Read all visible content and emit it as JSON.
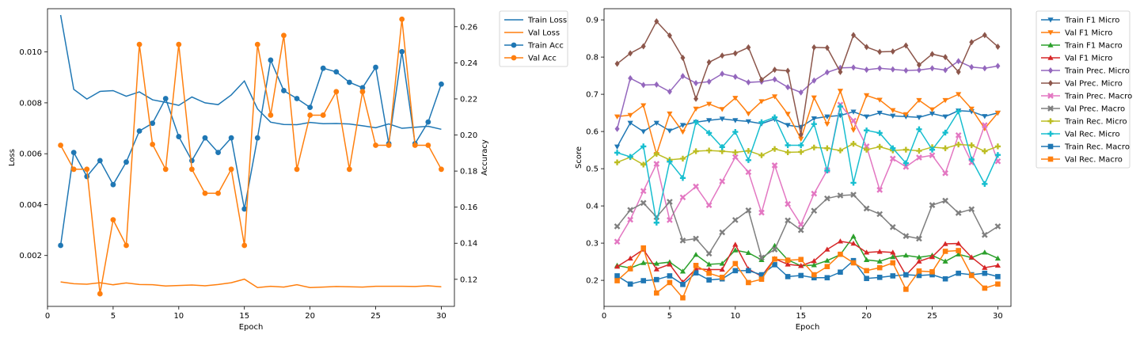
{
  "chart_data": [
    {
      "type": "line",
      "xlabel": "Epoch",
      "ylabel": "Loss",
      "y2label": "Accuracy",
      "x": [
        1,
        2,
        3,
        4,
        5,
        6,
        7,
        8,
        9,
        10,
        11,
        12,
        13,
        14,
        15,
        16,
        17,
        18,
        19,
        20,
        21,
        22,
        23,
        24,
        25,
        26,
        27,
        28,
        29,
        30
      ],
      "xlim": [
        0,
        31
      ],
      "ylim": [
        0,
        0.0117
      ],
      "y2lim": [
        0.105,
        0.27
      ],
      "xticks": [
        "0",
        "5",
        "10",
        "15",
        "20",
        "25",
        "30"
      ],
      "yticks": [
        "0.002",
        "0.004",
        "0.006",
        "0.008",
        "0.010"
      ],
      "y2ticks": [
        "0.12",
        "0.14",
        "0.16",
        "0.18",
        "0.20",
        "0.22",
        "0.24",
        "0.26"
      ],
      "grid": false,
      "legend_position": "outside-top-right",
      "series": [
        {
          "name": "Train Loss",
          "axis": "left",
          "color": "#1f77b4",
          "marker": "none",
          "values": [
            0.01145,
            0.00853,
            0.00815,
            0.00845,
            0.00848,
            0.00826,
            0.00843,
            0.00812,
            0.00802,
            0.0079,
            0.00823,
            0.008,
            0.00793,
            0.00831,
            0.00886,
            0.00776,
            0.00724,
            0.00715,
            0.00714,
            0.00723,
            0.00718,
            0.00719,
            0.00717,
            0.0071,
            0.00702,
            0.00717,
            0.007,
            0.00704,
            0.00708,
            0.00696
          ]
        },
        {
          "name": "Val Loss",
          "axis": "left",
          "color": "#ff7f0e",
          "marker": "none",
          "values": [
            0.00096,
            0.00089,
            0.00087,
            0.00093,
            0.00085,
            0.00092,
            0.00086,
            0.00085,
            0.0008,
            0.00082,
            0.00084,
            0.00081,
            0.00086,
            0.00093,
            0.00107,
            0.00074,
            0.00079,
            0.00076,
            0.00085,
            0.00074,
            0.00076,
            0.00078,
            0.00077,
            0.00076,
            0.00079,
            0.00079,
            0.00079,
            0.00078,
            0.00081,
            0.00077
          ]
        },
        {
          "name": "Train Acc",
          "axis": "right",
          "color": "#1f77b4",
          "marker": "circle",
          "values": [
            0.1388,
            0.1903,
            0.177,
            0.1858,
            0.1725,
            0.185,
            0.2022,
            0.2065,
            0.2202,
            0.1991,
            0.1858,
            0.1984,
            0.1903,
            0.1984,
            0.159,
            0.1984,
            0.2415,
            0.2246,
            0.2202,
            0.2153,
            0.237,
            0.235,
            0.2292,
            0.2262,
            0.2375,
            0.1952,
            0.2462,
            0.1952,
            0.2072,
            0.2282
          ]
        },
        {
          "name": "Val Acc",
          "axis": "right",
          "color": "#ff7f0e",
          "marker": "circle",
          "values": [
            0.1943,
            0.181,
            0.181,
            0.112,
            0.153,
            0.1388,
            0.2502,
            0.1948,
            0.181,
            0.2502,
            0.181,
            0.1677,
            0.1677,
            0.181,
            0.1388,
            0.2502,
            0.211,
            0.2552,
            0.181,
            0.211,
            0.211,
            0.224,
            0.181,
            0.224,
            0.1943,
            0.1943,
            0.2642,
            0.1943,
            0.1943,
            0.181
          ]
        }
      ]
    },
    {
      "type": "line",
      "xlabel": "Epoch",
      "ylabel": "Score",
      "x": [
        1,
        2,
        3,
        4,
        5,
        6,
        7,
        8,
        9,
        10,
        11,
        12,
        13,
        14,
        15,
        16,
        17,
        18,
        19,
        20,
        21,
        22,
        23,
        24,
        25,
        26,
        27,
        28,
        29,
        30
      ],
      "xlim": [
        0,
        31
      ],
      "ylim": [
        0.13,
        0.93
      ],
      "xticks": [
        "0",
        "5",
        "10",
        "15",
        "20",
        "25",
        "30"
      ],
      "yticks": [
        "0.2",
        "0.3",
        "0.4",
        "0.5",
        "0.6",
        "0.7",
        "0.8",
        "0.9"
      ],
      "grid": false,
      "legend_position": "outside-top-right",
      "series": [
        {
          "name": "Train F1 Micro",
          "color": "#1f77b4",
          "marker": "triangle-down",
          "values": [
            0.559,
            0.623,
            0.6,
            0.623,
            0.602,
            0.617,
            0.625,
            0.63,
            0.634,
            0.63,
            0.627,
            0.621,
            0.633,
            0.617,
            0.612,
            0.635,
            0.64,
            0.643,
            0.653,
            0.64,
            0.65,
            0.642,
            0.64,
            0.638,
            0.648,
            0.64,
            0.656,
            0.654,
            0.641,
            0.65
          ]
        },
        {
          "name": "Val F1 Micro",
          "color": "#ff7f0e",
          "marker": "triangle-down",
          "values": [
            0.64,
            0.644,
            0.67,
            0.539,
            0.648,
            0.599,
            0.661,
            0.674,
            0.66,
            0.69,
            0.648,
            0.681,
            0.694,
            0.647,
            0.58,
            0.691,
            0.62,
            0.709,
            0.604,
            0.697,
            0.685,
            0.657,
            0.646,
            0.684,
            0.659,
            0.684,
            0.7,
            0.661,
            0.608,
            0.65
          ]
        },
        {
          "name": "Train F1 Macro",
          "color": "#2ca02c",
          "marker": "triangle",
          "values": [
            0.24,
            0.233,
            0.247,
            0.245,
            0.249,
            0.224,
            0.269,
            0.243,
            0.245,
            0.281,
            0.274,
            0.255,
            0.293,
            0.255,
            0.239,
            0.241,
            0.253,
            0.269,
            0.318,
            0.255,
            0.251,
            0.263,
            0.267,
            0.262,
            0.267,
            0.251,
            0.27,
            0.261,
            0.275,
            0.259
          ]
        },
        {
          "name": "Val F1 Micro",
          "color": "#d62728",
          "marker": "triangle",
          "values": [
            0.237,
            0.259,
            0.283,
            0.23,
            0.243,
            0.195,
            0.231,
            0.229,
            0.229,
            0.296,
            0.23,
            0.211,
            0.258,
            0.243,
            0.239,
            0.252,
            0.283,
            0.305,
            0.299,
            0.275,
            0.277,
            0.275,
            0.214,
            0.251,
            0.263,
            0.298,
            0.299,
            0.262,
            0.234,
            0.24
          ]
        },
        {
          "name": "Train Prec. Micro",
          "color": "#9467bd",
          "marker": "diamond",
          "values": [
            0.607,
            0.743,
            0.725,
            0.726,
            0.707,
            0.749,
            0.73,
            0.734,
            0.755,
            0.747,
            0.732,
            0.734,
            0.74,
            0.719,
            0.705,
            0.737,
            0.759,
            0.771,
            0.772,
            0.766,
            0.77,
            0.767,
            0.764,
            0.765,
            0.77,
            0.765,
            0.789,
            0.773,
            0.77,
            0.776
          ]
        },
        {
          "name": "Val Prec. Micro",
          "color": "#8c564b",
          "marker": "diamond",
          "values": [
            0.782,
            0.81,
            0.829,
            0.896,
            0.858,
            0.798,
            0.688,
            0.786,
            0.804,
            0.81,
            0.826,
            0.739,
            0.766,
            0.763,
            0.592,
            0.826,
            0.825,
            0.76,
            0.859,
            0.827,
            0.814,
            0.815,
            0.831,
            0.779,
            0.808,
            0.8,
            0.76,
            0.84,
            0.859,
            0.828
          ]
        },
        {
          "name": "Train Prec. Macro",
          "color": "#e377c2",
          "marker": "x",
          "values": [
            0.304,
            0.363,
            0.44,
            0.513,
            0.362,
            0.423,
            0.452,
            0.402,
            0.466,
            0.531,
            0.491,
            0.382,
            0.509,
            0.405,
            0.35,
            0.433,
            0.496,
            0.672,
            0.629,
            0.56,
            0.443,
            0.527,
            0.505,
            0.53,
            0.536,
            0.488,
            0.59,
            0.517,
            0.617,
            0.52
          ]
        },
        {
          "name": "Val Prec. Macro",
          "color": "#7f7f7f",
          "marker": "x",
          "values": [
            0.345,
            0.389,
            0.408,
            0.37,
            0.411,
            0.307,
            0.312,
            0.272,
            0.329,
            0.362,
            0.388,
            0.261,
            0.283,
            0.361,
            0.335,
            0.387,
            0.42,
            0.428,
            0.43,
            0.393,
            0.378,
            0.343,
            0.319,
            0.312,
            0.402,
            0.414,
            0.381,
            0.391,
            0.322,
            0.345
          ]
        },
        {
          "name": "Train Rec. Micro",
          "color": "#bcbd22",
          "marker": "plus",
          "values": [
            0.517,
            0.531,
            0.511,
            0.54,
            0.524,
            0.527,
            0.547,
            0.549,
            0.547,
            0.544,
            0.548,
            0.536,
            0.553,
            0.544,
            0.545,
            0.557,
            0.555,
            0.549,
            0.567,
            0.551,
            0.559,
            0.549,
            0.551,
            0.548,
            0.558,
            0.555,
            0.565,
            0.563,
            0.547,
            0.56
          ]
        },
        {
          "name": "Val Rec. Micro",
          "color": "#17becf",
          "marker": "plus",
          "values": [
            0.543,
            0.532,
            0.56,
            0.355,
            0.519,
            0.475,
            0.625,
            0.596,
            0.558,
            0.599,
            0.523,
            0.625,
            0.638,
            0.563,
            0.563,
            0.62,
            0.495,
            0.667,
            0.462,
            0.603,
            0.596,
            0.555,
            0.515,
            0.606,
            0.551,
            0.597,
            0.654,
            0.525,
            0.459,
            0.537
          ]
        },
        {
          "name": "Train Rec. Macro",
          "color": "#1f77b4",
          "marker": "square",
          "values": [
            0.212,
            0.19,
            0.199,
            0.202,
            0.212,
            0.189,
            0.22,
            0.201,
            0.204,
            0.226,
            0.226,
            0.215,
            0.242,
            0.21,
            0.213,
            0.207,
            0.207,
            0.222,
            0.253,
            0.205,
            0.208,
            0.212,
            0.215,
            0.213,
            0.215,
            0.204,
            0.219,
            0.215,
            0.219,
            0.21
          ]
        },
        {
          "name": "Val Rec. Macro",
          "color": "#ff7f0e",
          "marker": "square",
          "values": [
            0.199,
            0.231,
            0.287,
            0.166,
            0.194,
            0.153,
            0.24,
            0.219,
            0.208,
            0.245,
            0.194,
            0.203,
            0.257,
            0.254,
            0.256,
            0.215,
            0.237,
            0.27,
            0.247,
            0.226,
            0.234,
            0.247,
            0.176,
            0.225,
            0.223,
            0.278,
            0.28,
            0.213,
            0.179,
            0.19
          ]
        }
      ]
    }
  ]
}
